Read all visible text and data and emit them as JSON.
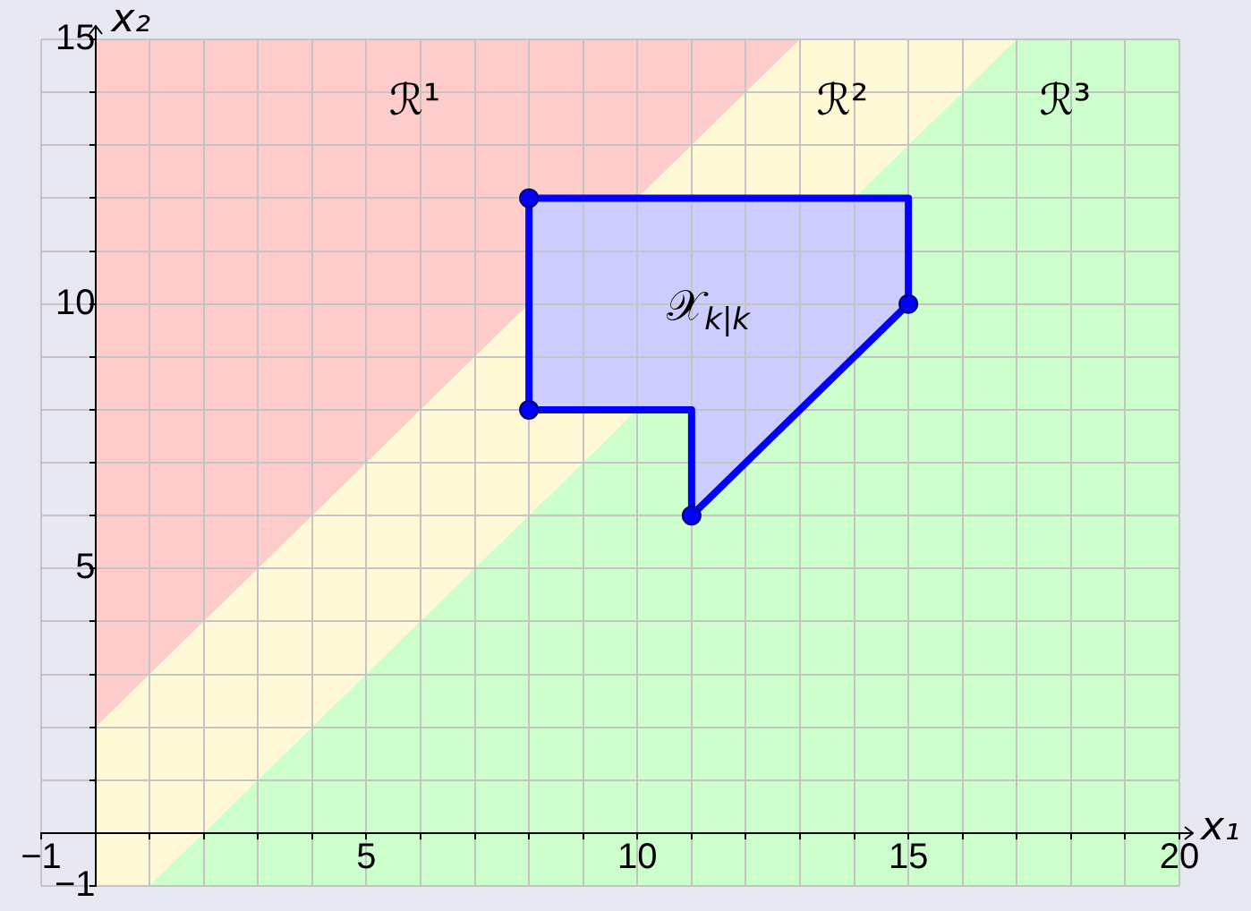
{
  "chart_data": {
    "type": "area",
    "xlabel": "x₁",
    "ylabel": "x₂",
    "xlim": [
      -1,
      20
    ],
    "ylim": [
      -1,
      15
    ],
    "xticks": [
      {
        "value": -1,
        "label": "−1"
      },
      {
        "value": 0,
        "label": null
      },
      {
        "value": 1,
        "label": null
      },
      {
        "value": 2,
        "label": null
      },
      {
        "value": 3,
        "label": null
      },
      {
        "value": 4,
        "label": null
      },
      5,
      {
        "value": 6,
        "label": null
      },
      {
        "value": 7,
        "label": null
      },
      {
        "value": 8,
        "label": null
      },
      {
        "value": 9,
        "label": null
      },
      10,
      {
        "value": 11,
        "label": null
      },
      {
        "value": 12,
        "label": null
      },
      {
        "value": 13,
        "label": null
      },
      {
        "value": 14,
        "label": null
      },
      15,
      {
        "value": 16,
        "label": null
      },
      {
        "value": 17,
        "label": null
      },
      {
        "value": 18,
        "label": null
      },
      {
        "value": 19,
        "label": null
      },
      20
    ],
    "yticks": [
      {
        "value": -1,
        "label": "−1"
      },
      {
        "value": 0,
        "label": null
      },
      {
        "value": 1,
        "label": null
      },
      {
        "value": 2,
        "label": null
      },
      {
        "value": 3,
        "label": null
      },
      {
        "value": 4,
        "label": null
      },
      5,
      {
        "value": 6,
        "label": null
      },
      {
        "value": 7,
        "label": null
      },
      {
        "value": 8,
        "label": null
      },
      {
        "value": 9,
        "label": null
      },
      10,
      {
        "value": 11,
        "label": null
      },
      {
        "value": 12,
        "label": null
      },
      {
        "value": 13,
        "label": null
      },
      {
        "value": 14,
        "label": null
      },
      15
    ],
    "grid": true,
    "series": [
      {
        "name": "ℛ¹",
        "color": "#ffcccc",
        "x": [
          0,
          0,
          13
        ],
        "values": [
          2,
          15,
          15
        ]
      },
      {
        "name": "ℛ²",
        "color": "#fff9d5",
        "x": [
          0,
          0,
          13,
          17,
          1
        ],
        "values": [
          -1,
          2,
          15,
          15,
          -1
        ]
      },
      {
        "name": "ℛ³",
        "color": "#ccffcc",
        "x": [
          1,
          17,
          20,
          20
        ],
        "values": [
          -1,
          15,
          15,
          -1
        ]
      },
      {
        "name": "𝒳$_{k|k}$",
        "color": "#ccccff",
        "line_style": "solid",
        "x": [
          8,
          15,
          15,
          11,
          11,
          8
        ],
        "values": [
          12,
          12,
          10,
          6,
          8,
          8
        ]
      },
      {
        "type": "scatter",
        "color": "#0000ff",
        "marker": "circle",
        "x": [
          8,
          15,
          11,
          8
        ],
        "values": [
          12,
          10,
          6,
          8
        ]
      }
    ]
  }
}
